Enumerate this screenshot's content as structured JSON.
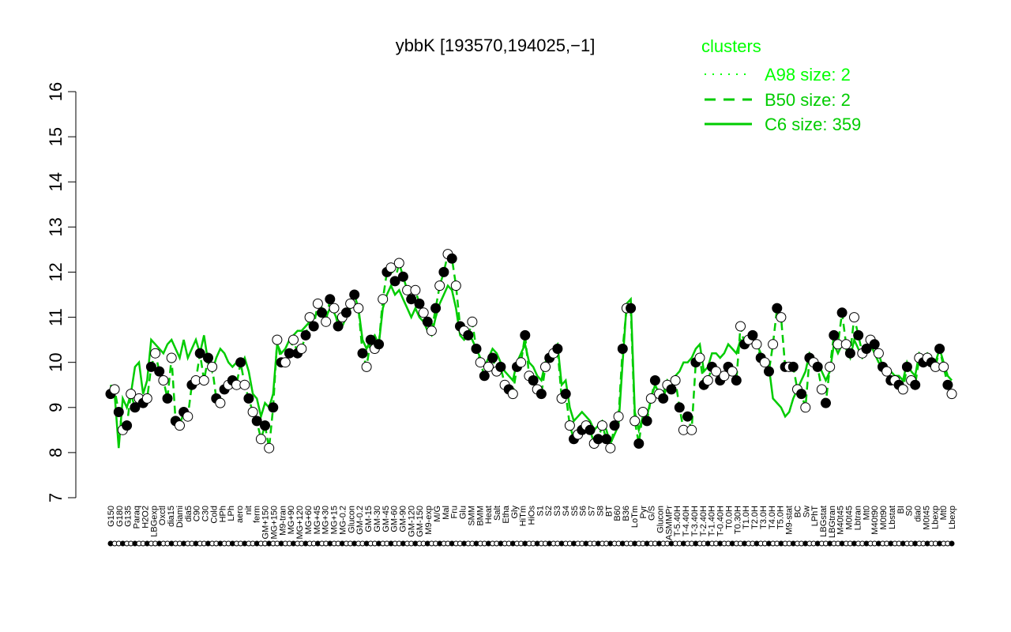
{
  "chart_data": {
    "type": "line",
    "title": "ybbK [193570,194025,−1]",
    "xlabel": "",
    "ylabel": "",
    "ylim": [
      7,
      16
    ],
    "y_ticks": [
      7,
      8,
      9,
      10,
      11,
      12,
      13,
      14,
      15,
      16
    ],
    "x_tick_labels": [
      "G150",
      "G180",
      "G135",
      "Paraq",
      "H2O2",
      "LBGexp",
      "Oxctl",
      "dia15",
      "Diami",
      "dia5",
      "C90",
      "C30",
      "Cold",
      "HPh",
      "LPh",
      "aero",
      "nit",
      "ferm",
      "GM+150",
      "MG+150",
      "M9-tran",
      "MG+90",
      "MG+120",
      "MG+60",
      "MG+45",
      "MG+30",
      "MG+15",
      "MG-0.2",
      "Glucon",
      "GM-0.2",
      "GM-15",
      "GM-30",
      "GM-45",
      "GM-60",
      "GM-90",
      "GM-120",
      "GM-150",
      "M9-exp",
      "M/G",
      "Mal",
      "Fru",
      "Glu",
      "SMM",
      "BMM",
      "Heat",
      "Salt",
      "Etha",
      "Gly",
      "HiTm",
      "HiOs",
      "S1",
      "S2",
      "S3",
      "S4",
      "S5",
      "S6",
      "S7",
      "S8",
      "BT",
      "B60",
      "B36",
      "LoTm",
      "Pyr",
      "G/S",
      "Glucon",
      "ASMMPr",
      "T-5.40H",
      "T-4.40H",
      "T-3.40H",
      "T-2.40H",
      "T-1.40H",
      "T-0.40H",
      "T0.0H",
      "T0.30H",
      "T1.0H",
      "T2.0H",
      "T3.0H",
      "T4.0H",
      "T5.0H",
      "M9-stat",
      "BC",
      "Sw",
      "LPhT",
      "LBGstat",
      "LBGtran",
      "M40t45",
      "M0t45",
      "Lbtran",
      "Mt0",
      "M40t90",
      "M0t90",
      "Lbstat",
      "BI",
      "S0",
      "dia0",
      "M0t45",
      "Lbexp",
      "Mt0",
      "Lbexp"
    ],
    "series": [
      {
        "name": "A98 size: 2",
        "style": "dotted",
        "color": "#00ff00",
        "values": []
      },
      {
        "name": "B50 size: 2",
        "style": "dashed",
        "color": "#00cc00",
        "values": [
          9.3,
          9.4,
          8.9,
          8.5,
          8.6,
          9.3,
          9.0,
          9.2,
          9.1,
          9.2,
          9.9,
          10.2,
          9.8,
          9.6,
          9.2,
          10.1,
          8.7,
          8.6,
          8.9,
          8.8,
          9.5,
          9.6,
          10.2,
          9.6,
          10.1,
          9.9,
          9.2,
          9.1,
          9.4,
          9.5,
          9.6,
          9.5,
          10.0,
          9.5,
          9.2,
          8.9,
          8.7,
          8.3,
          8.6,
          8.1,
          9.0,
          10.5,
          10.0,
          10.0,
          10.2,
          10.5,
          10.2,
          10.3,
          10.6,
          11.0,
          10.8,
          11.3,
          11.1,
          10.9,
          11.4,
          11.2,
          10.8,
          11.0,
          11.1,
          11.3,
          11.5,
          11.2,
          10.2,
          9.9,
          10.5,
          10.3,
          10.4,
          11.4,
          12.0,
          12.1,
          11.8,
          12.2,
          11.9,
          11.6,
          11.4,
          11.6,
          11.3,
          11.1,
          10.9,
          10.7,
          11.2,
          11.7,
          12.0,
          12.4,
          12.3,
          11.7,
          10.8,
          10.7,
          10.6,
          10.9,
          10.3,
          10.0,
          9.7,
          9.9,
          10.1,
          9.8,
          9.9,
          9.5,
          9.4,
          9.3,
          9.9,
          10.0,
          10.6,
          9.7,
          9.6,
          9.4,
          9.3,
          9.9,
          10.1,
          10.2,
          10.3,
          9.2,
          9.3,
          8.6,
          8.3,
          8.4,
          8.5,
          8.6,
          8.5,
          8.2,
          8.3,
          8.6,
          8.3,
          8.1,
          8.6,
          8.8,
          10.3,
          11.2,
          11.2,
          8.7,
          8.2,
          8.9,
          8.7,
          9.2,
          9.6,
          9.3,
          9.2,
          9.5,
          9.4,
          9.6,
          9.0,
          8.5,
          8.8,
          8.5,
          10.0,
          10.1,
          9.5,
          9.6,
          9.9,
          9.8,
          9.6,
          9.7,
          9.9,
          9.8,
          9.6,
          10.8,
          10.4,
          10.5,
          10.6,
          10.4,
          10.1,
          10.0,
          9.8,
          10.4,
          11.2,
          11.0,
          9.9,
          9.9,
          9.9,
          9.4,
          9.3,
          9.0,
          10.1,
          10.0,
          9.9,
          9.4,
          9.1,
          9.9,
          10.6,
          10.4,
          11.1,
          10.4,
          10.2,
          11.0,
          10.6,
          10.2,
          10.3,
          10.5,
          10.4,
          10.2,
          9.9,
          9.8,
          9.6,
          9.6,
          9.5,
          9.4,
          9.9,
          9.6,
          9.5,
          10.1,
          10.0,
          10.1,
          10.0,
          9.9,
          10.3,
          9.9,
          9.5,
          9.3
        ]
      },
      {
        "name": "C6 size: 359",
        "style": "solid",
        "color": "#00cc00",
        "values": [
          9.5,
          9.3,
          8.1,
          9.2,
          9.0,
          9.3,
          9.9,
          10.0,
          9.3,
          9.6,
          10.5,
          10.4,
          10.3,
          10.2,
          10.4,
          10.5,
          10.3,
          10.1,
          10.5,
          10.1,
          10.3,
          10.5,
          10.2,
          10.6,
          10.0,
          9.8,
          10.1,
          10.3,
          10.2,
          10.0,
          9.9,
          10.0,
          9.9,
          10.1,
          9.8,
          9.3,
          9.2,
          8.8,
          9.1,
          9.0,
          9.3,
          10.4,
          10.2,
          10.3,
          10.5,
          10.6,
          10.7,
          10.7,
          10.8,
          10.9,
          11.0,
          11.1,
          11.2,
          11.0,
          11.2,
          11.1,
          10.9,
          10.8,
          11.0,
          11.2,
          11.3,
          11.2,
          10.5,
          10.3,
          10.5,
          10.6,
          10.4,
          11.2,
          11.5,
          11.7,
          11.5,
          11.6,
          11.4,
          11.2,
          11.0,
          11.2,
          11.0,
          10.9,
          10.7,
          10.6,
          11.0,
          11.3,
          11.5,
          11.7,
          11.6,
          11.2,
          10.6,
          10.5,
          10.6,
          10.5,
          10.3,
          10.1,
          9.9,
          10.1,
          10.3,
          10.2,
          10.0,
          9.8,
          9.7,
          9.6,
          10.0,
          10.2,
          10.4,
          10.0,
          9.9,
          9.7,
          9.6,
          10.0,
          10.2,
          10.3,
          10.4,
          9.5,
          9.6,
          9.0,
          8.7,
          8.8,
          8.9,
          8.8,
          8.7,
          8.5,
          8.6,
          8.7,
          8.5,
          8.2,
          8.4,
          8.6,
          10.0,
          11.3,
          11.4,
          8.9,
          8.5,
          8.8,
          8.8,
          9.2,
          9.5,
          9.3,
          9.3,
          9.6,
          9.5,
          9.7,
          9.8,
          10.0,
          10.0,
          10.1,
          10.3,
          10.4,
          9.8,
          9.9,
          10.2,
          10.2,
          10.1,
          10.2,
          10.4,
          10.3,
          10.2,
          10.5,
          10.4,
          10.5,
          10.6,
          10.4,
          10.2,
          10.1,
          9.9,
          9.2,
          9.1,
          9.0,
          8.8,
          8.9,
          9.2,
          9.4,
          9.6,
          9.8,
          10.2,
          10.1,
          10.0,
          9.8,
          9.6,
          9.8,
          10.4,
          10.2,
          10.4,
          10.3,
          10.1,
          10.5,
          10.3,
          10.1,
          10.2,
          10.4,
          10.2,
          10.0,
          9.9,
          9.9,
          9.8,
          9.7,
          9.7,
          9.6,
          10.0,
          9.8,
          9.7,
          10.2,
          10.1,
          10.2,
          10.1,
          10.0,
          10.3,
          10.0,
          9.7,
          9.6
        ]
      }
    ],
    "legend": {
      "title": "clusters",
      "placement": "top-right",
      "entries": [
        "A98 size: 2",
        "B50 size: 2",
        "C6 size: 359"
      ]
    },
    "grid": false
  }
}
